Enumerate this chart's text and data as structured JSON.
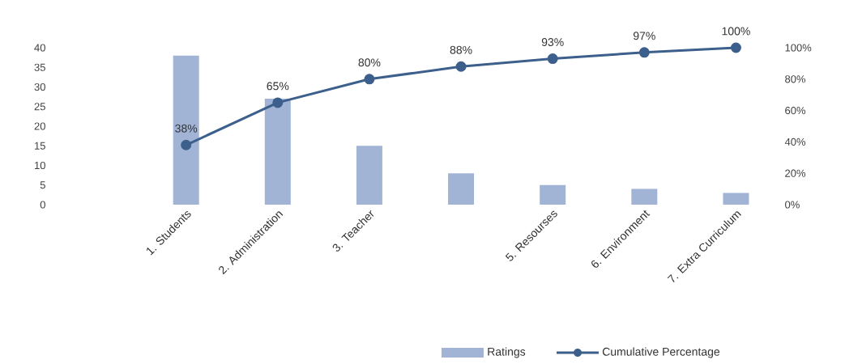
{
  "chart_data": {
    "type": "bar",
    "categories": [
      null,
      "1. Students",
      "2. Administration",
      "3. Teacher",
      null,
      "5. Resourses",
      "6. Environment",
      "7. Extra Curriculum"
    ],
    "series": [
      {
        "name": "Ratings",
        "color": "#a2b4d6",
        "values": [
          null,
          38,
          27,
          15,
          8,
          5,
          4,
          3
        ]
      },
      {
        "name": "Cumulative Percentage",
        "type": "line",
        "axis": "y2",
        "color": "#3c5f8c",
        "marker": "circle",
        "values": [
          null,
          38,
          65,
          80,
          88,
          93,
          97,
          100
        ],
        "value_labels": [
          null,
          "38%",
          "65%",
          "80%",
          "88%",
          "93%",
          "97%",
          "100%"
        ]
      }
    ],
    "ylim": [
      0,
      40
    ],
    "yticks": [
      0,
      5,
      10,
      15,
      20,
      25,
      30,
      35,
      40
    ],
    "y2lim": [
      0,
      100
    ],
    "y2ticks": [
      {
        "value": 0,
        "label": "0%"
      },
      {
        "value": 20,
        "label": "20%"
      },
      {
        "value": 40,
        "label": "40%"
      },
      {
        "value": 60,
        "label": "60%"
      },
      {
        "value": 80,
        "label": "80%"
      },
      {
        "value": 100,
        "label": "100%"
      }
    ],
    "grid": false,
    "legend": "bottom"
  }
}
